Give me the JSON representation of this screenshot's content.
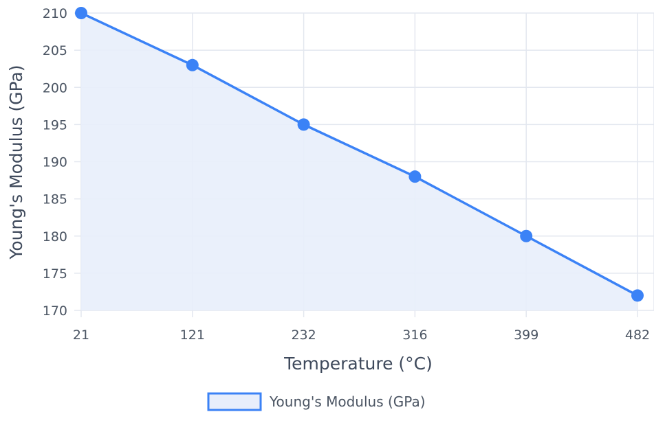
{
  "chart_data": {
    "type": "line",
    "x": [
      "21",
      "121",
      "232",
      "316",
      "399",
      "482"
    ],
    "series": [
      {
        "name": "Young's Modulus (GPa)",
        "values": [
          210,
          203,
          195,
          188,
          180,
          172
        ]
      }
    ],
    "xlabel": "Temperature (°C)",
    "ylabel": "Young's Modulus (GPa)",
    "ylim": [
      170,
      210
    ],
    "yticks": [
      "170",
      "175",
      "180",
      "185",
      "190",
      "195",
      "200",
      "205",
      "210"
    ],
    "fill": true,
    "grid": true,
    "legend_position": "bottom",
    "colors": {
      "line": "#3b82f6",
      "fill": "#e8eefb",
      "grid": "#e3e7ef",
      "legend_fill": "#e8eefb",
      "legend_border": "#3b82f6"
    }
  }
}
